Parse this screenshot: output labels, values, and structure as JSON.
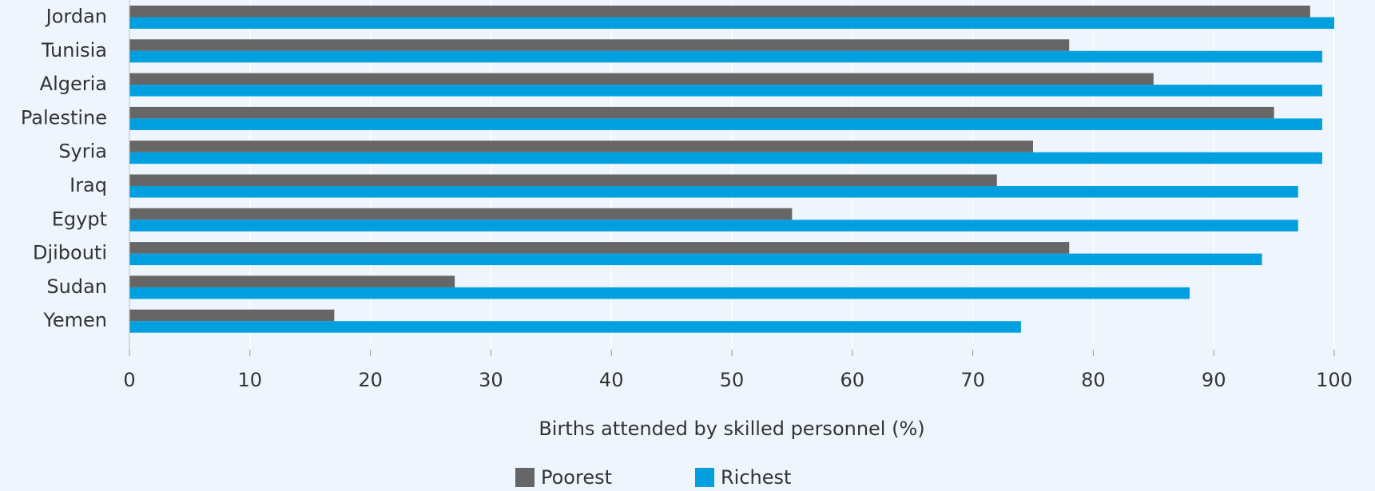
{
  "chart_data": {
    "type": "bar",
    "orientation": "horizontal",
    "categories": [
      "Jordan",
      "Tunisia",
      "Algeria",
      "Palestine",
      "Syria",
      "Iraq",
      "Egypt",
      "Djibouti",
      "Sudan",
      "Yemen"
    ],
    "series": [
      {
        "name": "Poorest",
        "color": "#666666",
        "values": [
          98,
          78,
          85,
          95,
          75,
          72,
          55,
          78,
          27,
          17
        ]
      },
      {
        "name": "Richest",
        "color": "#009fdf",
        "values": [
          100,
          99,
          99,
          99,
          99,
          97,
          97,
          94,
          88,
          74
        ]
      }
    ],
    "xlabel": "Births attended by skilled personnel (%)",
    "xlim": [
      0,
      100
    ],
    "xticks": [
      0,
      10,
      20,
      30,
      40,
      50,
      60,
      70,
      80,
      90,
      100
    ],
    "grid": true,
    "legend": "bottom"
  }
}
